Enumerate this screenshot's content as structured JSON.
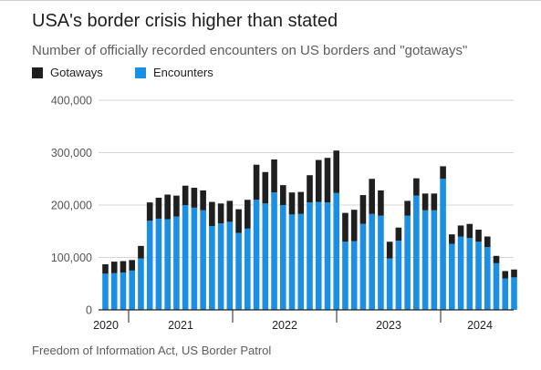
{
  "title": "USA's border crisis higher than stated",
  "subtitle": "Number of officially recorded encounters on US borders and \"gotaways\"",
  "source": "Freedom of Information Act, US Border Patrol",
  "colors": {
    "gotaways": "#1f1f1f",
    "encounters": "#1a8fe3",
    "grid": "#d6d6d6",
    "axis": "#222222",
    "tick_text": "#555555"
  },
  "chart_data": {
    "type": "bar",
    "stacked": true,
    "legend_position": "top-left",
    "grid": true,
    "ylim": [
      0,
      400000
    ],
    "yticks": [
      "0",
      "100,000",
      "200,000",
      "300,000",
      "400,000"
    ],
    "year_labels": [
      "2020",
      "2021",
      "2022",
      "2023",
      "2024"
    ],
    "series": [
      {
        "name": "Encounters",
        "color": "#1a8fe3",
        "values": [
          69000,
          70000,
          71000,
          75000,
          98000,
          170000,
          174000,
          173000,
          178000,
          200000,
          195000,
          190000,
          160000,
          165000,
          168000,
          147000,
          155000,
          210000,
          203000,
          224000,
          200000,
          182000,
          183000,
          205000,
          206000,
          205000,
          223000,
          130000,
          131000,
          164000,
          183000,
          180000,
          98000,
          132000,
          180000,
          218000,
          190000,
          190000,
          250000,
          126000,
          140000,
          137000,
          130000,
          120000,
          89000,
          60000,
          62000
        ]
      },
      {
        "name": "Gotaways",
        "color": "#1f1f1f",
        "values": [
          18000,
          22000,
          22000,
          20000,
          24000,
          35000,
          40000,
          47000,
          40000,
          37000,
          38000,
          38000,
          46000,
          38000,
          40000,
          45000,
          55000,
          67000,
          60000,
          63000,
          38000,
          42000,
          42000,
          52000,
          80000,
          85000,
          81000,
          55000,
          60000,
          55000,
          67000,
          48000,
          32000,
          25000,
          28000,
          33000,
          32000,
          32000,
          24000,
          18000,
          21000,
          27000,
          23000,
          20000,
          14000,
          14000,
          15000
        ]
      }
    ]
  }
}
